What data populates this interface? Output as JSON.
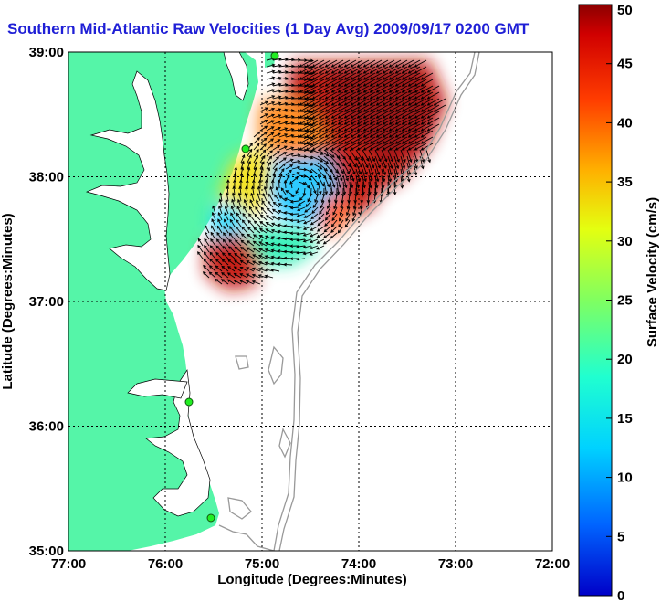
{
  "title": "Southern Mid-Atlantic Raw Velocities (1 Day Avg) 2009/09/17 0200 GMT",
  "x_axis": {
    "label": "Longitude (Degrees:Minutes)",
    "ticks": [
      "77:00",
      "76:00",
      "75:00",
      "74:00",
      "73:00",
      "72:00"
    ]
  },
  "y_axis": {
    "label": "Latitude (Degrees:Minutes)",
    "ticks": [
      "35:00",
      "36:00",
      "37:00",
      "38:00",
      "39:00"
    ]
  },
  "colorbar": {
    "label": "Surface Velocity (cm/s)",
    "ticks": [
      "0",
      "5",
      "10",
      "15",
      "20",
      "25",
      "30",
      "35",
      "40",
      "45",
      "50"
    ],
    "min": 0,
    "max": 50,
    "scale": "jet"
  },
  "map": {
    "lon_range": [
      -77,
      -72
    ],
    "lat_range": [
      35,
      39
    ],
    "grid": "dotted",
    "land_color": "#55f5a8",
    "contour_color": "#999999",
    "station_color": "#22ee22"
  }
}
